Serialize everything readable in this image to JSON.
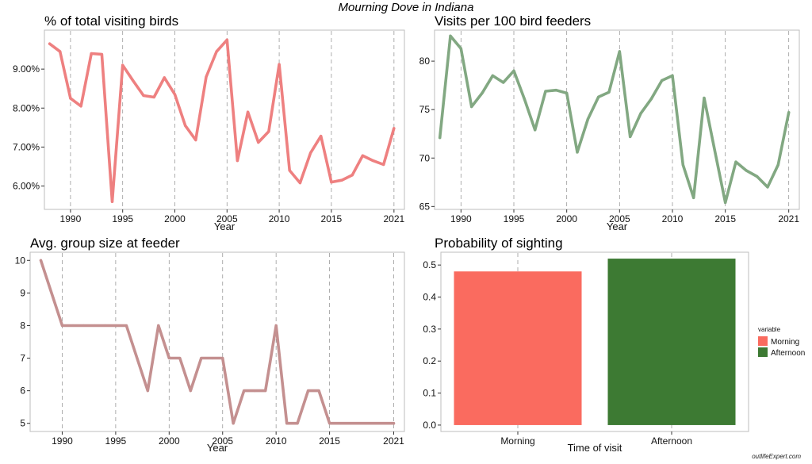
{
  "title": "Mourning Dove in Indiana",
  "credit": "outlifeExpert.com",
  "chart_data": [
    {
      "type": "line",
      "title": "% of total visiting birds",
      "xlabel": "Year",
      "ylabel": "",
      "color": "#ee8080",
      "xlim": [
        1987.5,
        2022
      ],
      "ylim": [
        5.4,
        10.0
      ],
      "xticks": [
        1990,
        1995,
        2000,
        2005,
        2010,
        2015,
        2021
      ],
      "yticks": [
        6,
        7,
        8,
        9
      ],
      "ytick_labels": [
        "6.00%",
        "7.00%",
        "8.00%",
        "9.00%"
      ],
      "x": [
        1988,
        1989,
        1990,
        1991,
        1992,
        1993,
        1994,
        1995,
        1996,
        1997,
        1998,
        1999,
        2000,
        2001,
        2002,
        2003,
        2004,
        2005,
        2006,
        2007,
        2008,
        2009,
        2010,
        2011,
        2012,
        2013,
        2014,
        2015,
        2016,
        2017,
        2018,
        2019,
        2020,
        2021
      ],
      "y": [
        9.65,
        9.45,
        8.25,
        8.05,
        9.4,
        9.38,
        5.6,
        9.1,
        8.7,
        8.32,
        8.28,
        8.78,
        8.35,
        7.55,
        7.18,
        8.8,
        9.45,
        9.75,
        6.65,
        7.9,
        7.12,
        7.4,
        9.12,
        6.4,
        6.08,
        6.85,
        7.28,
        6.1,
        6.15,
        6.28,
        6.78,
        6.65,
        6.55,
        7.48
      ],
      "grid": "vertical dashed"
    },
    {
      "type": "line",
      "title": "Visits per 100 bird feeders",
      "xlabel": "Year",
      "ylabel": "",
      "color": "#82a882",
      "xlim": [
        1987.5,
        2022
      ],
      "ylim": [
        64.7,
        83.2
      ],
      "xticks": [
        1990,
        1995,
        2000,
        2005,
        2010,
        2015,
        2021
      ],
      "yticks": [
        65,
        70,
        75,
        80
      ],
      "ytick_labels": [
        "65",
        "70",
        "75",
        "80"
      ],
      "x": [
        1988,
        1989,
        1990,
        1991,
        1992,
        1993,
        1994,
        1995,
        1996,
        1997,
        1998,
        1999,
        2000,
        2001,
        2002,
        2003,
        2004,
        2005,
        2006,
        2007,
        2008,
        2009,
        2010,
        2011,
        2012,
        2013,
        2014,
        2015,
        2016,
        2017,
        2018,
        2019,
        2020,
        2021
      ],
      "y": [
        72.1,
        82.6,
        81.3,
        75.3,
        76.7,
        78.5,
        77.8,
        79.0,
        76.1,
        72.9,
        76.9,
        77.0,
        76.7,
        70.6,
        74.0,
        76.3,
        76.8,
        81.0,
        72.2,
        74.6,
        76.1,
        78.0,
        78.5,
        69.3,
        65.9,
        76.2,
        70.8,
        65.4,
        69.6,
        68.7,
        68.1,
        67.0,
        69.3,
        74.7
      ],
      "grid": "vertical dashed"
    },
    {
      "type": "line",
      "title": "Avg. group size at feeder",
      "xlabel": "Year",
      "ylabel": "",
      "color": "#c49090",
      "xlim": [
        1987,
        2022
      ],
      "ylim": [
        4.75,
        10.25
      ],
      "xticks": [
        1990,
        1995,
        2000,
        2005,
        2010,
        2015,
        2021
      ],
      "yticks": [
        5,
        6,
        7,
        8,
        9,
        10
      ],
      "ytick_labels": [
        "5",
        "6",
        "7",
        "8",
        "9",
        "10"
      ],
      "x": [
        1988,
        1990,
        1991,
        1992,
        1993,
        1994,
        1995,
        1996,
        1998,
        1999,
        2000,
        2001,
        2002,
        2003,
        2004,
        2005,
        2006,
        2007,
        2008,
        2009,
        2010,
        2011,
        2012,
        2013,
        2014,
        2015,
        2016,
        2017,
        2018,
        2019,
        2020,
        2021
      ],
      "y": [
        10,
        8,
        8,
        8,
        8,
        8,
        8,
        8,
        6,
        8,
        7,
        7,
        6,
        7,
        7,
        7,
        5,
        6,
        6,
        6,
        8,
        5,
        5,
        6,
        6,
        5,
        5,
        5,
        5,
        5,
        5,
        5
      ],
      "grid": "vertical dashed"
    },
    {
      "type": "bar",
      "title": "Probability of sighting",
      "xlabel": "Time of visit",
      "ylabel": "",
      "categories": [
        "Morning",
        "Afternoon"
      ],
      "values": [
        0.48,
        0.52
      ],
      "colors": [
        "#fa6b5f",
        "#3d7a33"
      ],
      "ylim": [
        -0.02,
        0.54
      ],
      "yticks": [
        0.0,
        0.1,
        0.2,
        0.3,
        0.4,
        0.5
      ],
      "ytick_labels": [
        "0.0",
        "0.1",
        "0.2",
        "0.3",
        "0.4",
        "0.5"
      ],
      "legend": {
        "title": "variable",
        "position": "right",
        "entries": [
          "Morning",
          "Afternoon"
        ]
      },
      "grid": "vertical dashed"
    }
  ]
}
